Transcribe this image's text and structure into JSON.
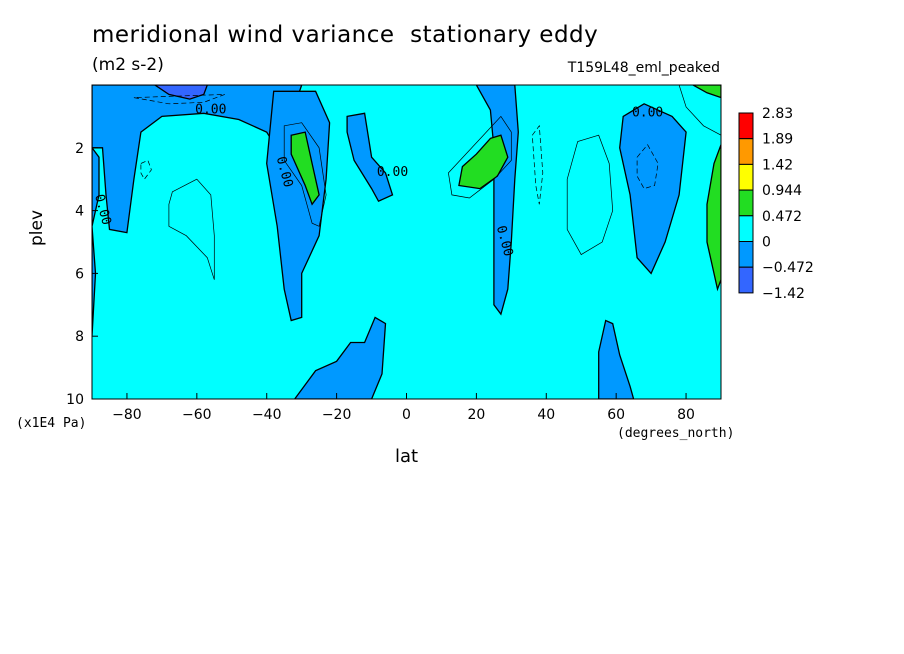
{
  "chart_data": {
    "type": "heatmap",
    "title": "meridional wind variance  stationary eddy",
    "units_label": "(m2 s-2)",
    "run_label": "T159L48_eml_peaked",
    "xlabel": "lat",
    "xunits": "(degrees_north)",
    "ylabel": "plev",
    "yscale_label": "(x1E4 Pa)",
    "xlim": [
      -90,
      90
    ],
    "ylim": [
      0,
      10
    ],
    "y_inverted": true,
    "x_ticks": [
      "-80",
      "-60",
      "-40",
      "-20",
      "0",
      "20",
      "40",
      "60",
      "80"
    ],
    "y_ticks": [
      "2",
      "4",
      "6",
      "8",
      "10"
    ],
    "contour_labels": [
      {
        "text": "0.00",
        "x": -56,
        "y": 0.9
      },
      {
        "text": "0.00",
        "x": -36,
        "y": 2.8
      },
      {
        "text": "0.00",
        "x": -4,
        "y": 2.9
      },
      {
        "text": "0.00",
        "x": 27,
        "y": 5.0
      },
      {
        "text": "0.00",
        "x": 69,
        "y": 1.0
      },
      {
        "text": "0.00",
        "x": -88,
        "y": 4.0
      }
    ],
    "colorbar": {
      "levels": [
        "2.83",
        "1.89",
        "1.42",
        "0.944",
        "0.472",
        "0",
        "−0.472",
        "−1.42"
      ],
      "colors": [
        "#ff0000",
        "#ff9900",
        "#ffff00",
        "#22dd22",
        "#00ffff",
        "#0099ff",
        "#3366ff"
      ]
    },
    "palette": {
      "background": "#00ffff",
      "negative": "#0099ff",
      "strong_negative": "#3366ff",
      "positive": "#22dd22"
    },
    "regions": [
      {
        "level": "neg",
        "pts": [
          [
            -90,
            0
          ],
          [
            -30,
            0
          ],
          [
            -34,
            1.3
          ],
          [
            -36,
            2.2
          ],
          [
            -40,
            1.5
          ],
          [
            -48,
            1.1
          ],
          [
            -58,
            0.9
          ],
          [
            -70,
            1.0
          ],
          [
            -76,
            1.5
          ],
          [
            -78,
            3.0
          ],
          [
            -80,
            4.7
          ],
          [
            -85,
            4.6
          ],
          [
            -86,
            3.5
          ],
          [
            -87,
            2.0
          ],
          [
            -90,
            2.0
          ]
        ]
      },
      {
        "level": "neg",
        "pts": [
          [
            -90,
            2.0
          ],
          [
            -88,
            2.3
          ],
          [
            -88,
            3.5
          ],
          [
            -90,
            4.5
          ],
          [
            -89,
            6.0
          ],
          [
            -90,
            8.0
          ]
        ]
      },
      {
        "level": "neg",
        "pts": [
          [
            -38,
            0.2
          ],
          [
            -40,
            2.5
          ],
          [
            -37,
            4.5
          ],
          [
            -35,
            6.5
          ],
          [
            -33,
            7.5
          ],
          [
            -30,
            7.4
          ],
          [
            -30,
            6.0
          ],
          [
            -25,
            4.8
          ],
          [
            -23,
            3.0
          ],
          [
            -22,
            1.2
          ],
          [
            -26,
            0.2
          ]
        ]
      },
      {
        "level": "neg",
        "pts": [
          [
            -17,
            1.0
          ],
          [
            -12,
            0.9
          ],
          [
            -11,
            1.6
          ],
          [
            -10,
            2.3
          ],
          [
            -6,
            2.8
          ],
          [
            -4,
            3.5
          ],
          [
            -8,
            3.7
          ],
          [
            -10,
            3.3
          ],
          [
            -15,
            2.4
          ],
          [
            -17,
            1.5
          ]
        ]
      },
      {
        "level": "neg",
        "pts": [
          [
            20,
            0
          ],
          [
            31,
            0
          ],
          [
            32,
            1.5
          ],
          [
            31,
            3.0
          ],
          [
            30,
            5.0
          ],
          [
            29,
            6.5
          ],
          [
            27,
            7.3
          ],
          [
            25,
            7.0
          ],
          [
            25,
            5.0
          ],
          [
            25,
            3.5
          ],
          [
            25,
            2.0
          ],
          [
            24,
            0.8
          ]
        ]
      },
      {
        "level": "neg",
        "pts": [
          [
            62,
            1.0
          ],
          [
            68,
            0.6
          ],
          [
            76,
            1.0
          ],
          [
            80,
            1.5
          ],
          [
            78,
            3.5
          ],
          [
            74,
            5.0
          ],
          [
            70,
            6.0
          ],
          [
            66,
            5.5
          ],
          [
            64,
            3.5
          ],
          [
            61,
            2.0
          ]
        ]
      },
      {
        "level": "neg",
        "pts": [
          [
            -32,
            10
          ],
          [
            -26,
            9.1
          ],
          [
            -20,
            8.8
          ],
          [
            -16,
            8.2
          ],
          [
            -12,
            8.2
          ],
          [
            -9,
            7.4
          ],
          [
            -6,
            7.6
          ],
          [
            -7,
            9.2
          ],
          [
            -10,
            10
          ]
        ]
      },
      {
        "level": "neg",
        "pts": [
          [
            55,
            10
          ],
          [
            55,
            8.5
          ],
          [
            57,
            7.5
          ],
          [
            59,
            7.6
          ],
          [
            61,
            8.6
          ],
          [
            64,
            9.6
          ],
          [
            65,
            10
          ]
        ]
      },
      {
        "level": "strong",
        "pts": [
          [
            -72,
            0
          ],
          [
            -57,
            0
          ],
          [
            -58,
            0.3
          ],
          [
            -62,
            0.45
          ],
          [
            -68,
            0.3
          ]
        ]
      },
      {
        "level": "pos",
        "pts": [
          [
            -33,
            1.6
          ],
          [
            -29,
            1.5
          ],
          [
            -27,
            2.5
          ],
          [
            -25,
            3.5
          ],
          [
            -27,
            3.8
          ],
          [
            -29,
            3.2
          ],
          [
            -33,
            2.2
          ]
        ]
      },
      {
        "level": "pos",
        "pts": [
          [
            24,
            1.7
          ],
          [
            27,
            1.6
          ],
          [
            29,
            2.3
          ],
          [
            26,
            2.9
          ],
          [
            21,
            3.3
          ],
          [
            15,
            3.2
          ],
          [
            16,
            2.6
          ],
          [
            20,
            2.2
          ]
        ]
      },
      {
        "level": "pos",
        "pts": [
          [
            82,
            0
          ],
          [
            90,
            0
          ],
          [
            90,
            0.4
          ],
          [
            86,
            0.25
          ]
        ]
      },
      {
        "level": "pos",
        "pts": [
          [
            90,
            1.9
          ],
          [
            88,
            2.5
          ],
          [
            86,
            3.8
          ],
          [
            86,
            5.0
          ],
          [
            89,
            6.5
          ],
          [
            90,
            6.2
          ]
        ]
      }
    ],
    "thin_contours": [
      {
        "dashed": false,
        "pts": [
          [
            -67,
            3.4
          ],
          [
            -60,
            3.0
          ],
          [
            -56,
            3.5
          ],
          [
            -55,
            4.8
          ],
          [
            -55,
            6.2
          ],
          [
            -57,
            5.5
          ],
          [
            -63,
            4.8
          ],
          [
            -68,
            4.5
          ],
          [
            -68,
            3.8
          ]
        ]
      },
      {
        "dashed": true,
        "pts": [
          [
            -76,
            2.5
          ],
          [
            -74,
            2.4
          ],
          [
            -73,
            2.7
          ],
          [
            -75,
            3.0
          ],
          [
            -76,
            2.8
          ]
        ]
      },
      {
        "dashed": false,
        "pts": [
          [
            -35,
            1.3
          ],
          [
            -30,
            1.2
          ],
          [
            -25,
            2.0
          ],
          [
            -23,
            3.5
          ],
          [
            -25,
            4.5
          ],
          [
            -27,
            4.4
          ],
          [
            -30,
            3.2
          ],
          [
            -35,
            2.4
          ]
        ]
      },
      {
        "dashed": false,
        "pts": [
          [
            30,
            1.5
          ],
          [
            27,
            1.0
          ],
          [
            22,
            1.6
          ],
          [
            12,
            2.8
          ],
          [
            13,
            3.5
          ],
          [
            18,
            3.6
          ],
          [
            25,
            3.0
          ],
          [
            30,
            2.4
          ]
        ]
      },
      {
        "dashed": true,
        "pts": [
          [
            36,
            1.6
          ],
          [
            38,
            1.3
          ],
          [
            39,
            2.8
          ],
          [
            38,
            3.8
          ],
          [
            37,
            3.2
          ]
        ]
      },
      {
        "dashed": false,
        "pts": [
          [
            46,
            3.0
          ],
          [
            49,
            1.8
          ],
          [
            55,
            1.6
          ],
          [
            58,
            2.5
          ],
          [
            59,
            4.0
          ],
          [
            56,
            5.0
          ],
          [
            50,
            5.4
          ],
          [
            46,
            4.6
          ]
        ]
      },
      {
        "dashed": true,
        "pts": [
          [
            66,
            2.3
          ],
          [
            69,
            1.9
          ],
          [
            72,
            2.5
          ],
          [
            71,
            3.2
          ],
          [
            68,
            3.3
          ],
          [
            66,
            2.9
          ]
        ]
      },
      {
        "dashed": false,
        "pts": [
          [
            78,
            0
          ],
          [
            80,
            0.7
          ],
          [
            85,
            1.3
          ],
          [
            90,
            1.6
          ]
        ]
      },
      {
        "dashed": true,
        "pts": [
          [
            -78,
            0.4
          ],
          [
            -68,
            0.6
          ],
          [
            -58,
            0.55
          ],
          [
            -52,
            0.3
          ]
        ]
      }
    ]
  }
}
